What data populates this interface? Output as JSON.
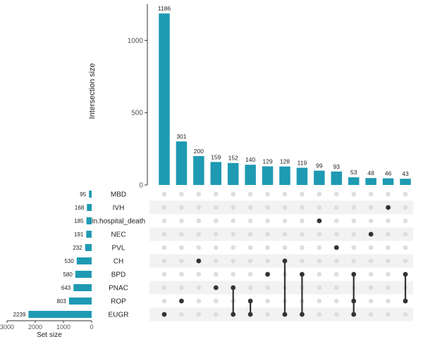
{
  "chart_data": {
    "type": "upset",
    "intersection_axis": {
      "label": "Intersection size",
      "ticks": [
        0,
        500,
        1000
      ],
      "range": [
        0,
        1250
      ]
    },
    "set_size_axis": {
      "label": "Set size",
      "ticks": [
        3000,
        2000,
        1000,
        0
      ],
      "range": [
        0,
        3000
      ],
      "reversed": true
    },
    "sets": [
      {
        "name": "MBD",
        "size": 95
      },
      {
        "name": "IVH",
        "size": 168
      },
      {
        "name": "In.hospital_death",
        "size": 185
      },
      {
        "name": "NEC",
        "size": 191
      },
      {
        "name": "PVL",
        "size": 232
      },
      {
        "name": "CH",
        "size": 530
      },
      {
        "name": "BPD",
        "size": 580
      },
      {
        "name": "PNAC",
        "size": 643
      },
      {
        "name": "ROP",
        "size": 803
      },
      {
        "name": "EUGR",
        "size": 2239
      }
    ],
    "intersections": [
      {
        "size": 1186,
        "sets": [
          "EUGR"
        ]
      },
      {
        "size": 301,
        "sets": [
          "ROP"
        ]
      },
      {
        "size": 200,
        "sets": [
          "CH"
        ]
      },
      {
        "size": 159,
        "sets": [
          "PNAC"
        ]
      },
      {
        "size": 152,
        "sets": [
          "PNAC",
          "EUGR"
        ]
      },
      {
        "size": 140,
        "sets": [
          "ROP",
          "EUGR"
        ]
      },
      {
        "size": 129,
        "sets": [
          "BPD"
        ]
      },
      {
        "size": 128,
        "sets": [
          "CH",
          "EUGR"
        ]
      },
      {
        "size": 119,
        "sets": [
          "BPD",
          "EUGR"
        ]
      },
      {
        "size": 99,
        "sets": [
          "In.hospital_death"
        ]
      },
      {
        "size": 93,
        "sets": [
          "PVL"
        ]
      },
      {
        "size": 53,
        "sets": [
          "BPD",
          "ROP",
          "EUGR"
        ]
      },
      {
        "size": 48,
        "sets": [
          "NEC"
        ]
      },
      {
        "size": 46,
        "sets": [
          "IVH"
        ]
      },
      {
        "size": 43,
        "sets": [
          "BPD",
          "ROP"
        ]
      }
    ],
    "colors": {
      "bar": "#1f9ab3",
      "dot_active": "#333333",
      "dot_inactive": "#dddddd",
      "stripe": "#f2f2f2",
      "axis": "#333333",
      "text": "#222222"
    }
  }
}
